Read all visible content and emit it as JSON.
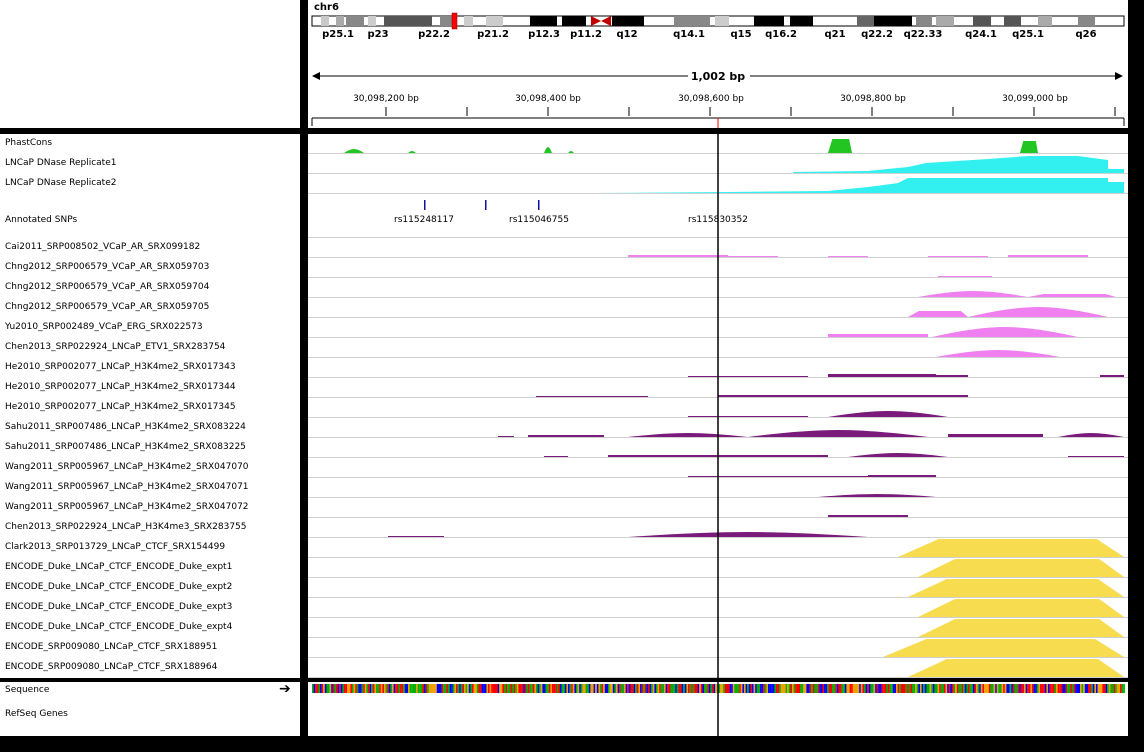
{
  "header": {
    "chromosome": "chr6",
    "span_label": "1,002 bp",
    "cytobands": [
      "p25.1",
      "p23",
      "p22.2",
      "p21.2",
      "p12.3",
      "p11.2",
      "q12",
      "q14.1",
      "q15",
      "q16.2",
      "q21",
      "q22.2",
      "q22.33",
      "q24.1",
      "q25.1",
      "q26"
    ],
    "ruler_ticks": [
      "30,098,200 bp",
      "30,098,400 bp",
      "30,098,600 bp",
      "30,098,800 bp",
      "30,099,000 bp"
    ]
  },
  "tracks": [
    {
      "name": "PhastCons",
      "color": "#22c522"
    },
    {
      "name": "LNCaP DNase Replicate1",
      "color": "#33f0f0"
    },
    {
      "name": "LNCaP DNase Replicate2",
      "color": "#33f0f0"
    },
    {
      "name": "Annotated SNPs",
      "color": "#000080"
    },
    {
      "name": "Cai2011_SRP008502_VCaP_AR_SRX099182",
      "color": "#f080f0"
    },
    {
      "name": "Chng2012_SRP006579_VCaP_AR_SRX059703",
      "color": "#f080f0"
    },
    {
      "name": "Chng2012_SRP006579_VCaP_AR_SRX059704",
      "color": "#f080f0"
    },
    {
      "name": "Chng2012_SRP006579_VCaP_AR_SRX059705",
      "color": "#f080f0"
    },
    {
      "name": "Yu2010_SRP002489_VCaP_ERG_SRX022573",
      "color": "#f080f0"
    },
    {
      "name": "Chen2013_SRP022924_LNCaP_ETV1_SRX283754",
      "color": "#f080f0"
    },
    {
      "name": "He2010_SRP002077_LNCaP_H3K4me2_SRX017343",
      "color": "#7a1a7a"
    },
    {
      "name": "He2010_SRP002077_LNCaP_H3K4me2_SRX017344",
      "color": "#7a1a7a"
    },
    {
      "name": "He2010_SRP002077_LNCaP_H3K4me2_SRX017345",
      "color": "#7a1a7a"
    },
    {
      "name": "Sahu2011_SRP007486_LNCaP_H3K4me2_SRX083224",
      "color": "#7a1a7a"
    },
    {
      "name": "Sahu2011_SRP007486_LNCaP_H3K4me2_SRX083225",
      "color": "#7a1a7a"
    },
    {
      "name": "Wang2011_SRP005967_LNCaP_H3K4me2_SRX047070",
      "color": "#7a1a7a"
    },
    {
      "name": "Wang2011_SRP005967_LNCaP_H3K4me2_SRX047071",
      "color": "#7a1a7a"
    },
    {
      "name": "Wang2011_SRP005967_LNCaP_H3K4me2_SRX047072",
      "color": "#7a1a7a"
    },
    {
      "name": "Chen2013_SRP022924_LNCaP_H3K4me3_SRX283755",
      "color": "#7a1a7a"
    },
    {
      "name": "Clark2013_SRP013729_LNCaP_CTCF_SRX154499",
      "color": "#f8dc50"
    },
    {
      "name": "ENCODE_Duke_LNCaP_CTCF_ENCODE_Duke_expt1",
      "color": "#f8dc50"
    },
    {
      "name": "ENCODE_Duke_LNCaP_CTCF_ENCODE_Duke_expt2",
      "color": "#f8dc50"
    },
    {
      "name": "ENCODE_Duke_LNCaP_CTCF_ENCODE_Duke_expt3",
      "color": "#f8dc50"
    },
    {
      "name": "ENCODE_Duke_LNCaP_CTCF_ENCODE_Duke_expt4",
      "color": "#f8dc50"
    },
    {
      "name": "ENCODE_SRP009080_LNCaP_CTCF_SRX188951",
      "color": "#f8dc50"
    },
    {
      "name": "ENCODE_SRP009080_LNCaP_CTCF_SRX188964",
      "color": "#f8dc50"
    }
  ],
  "snps": [
    "rs115248117",
    "rs115046755",
    "rs115830352"
  ],
  "bottom_tracks": [
    {
      "name": "Sequence"
    },
    {
      "name": "RefSeq Genes"
    }
  ]
}
